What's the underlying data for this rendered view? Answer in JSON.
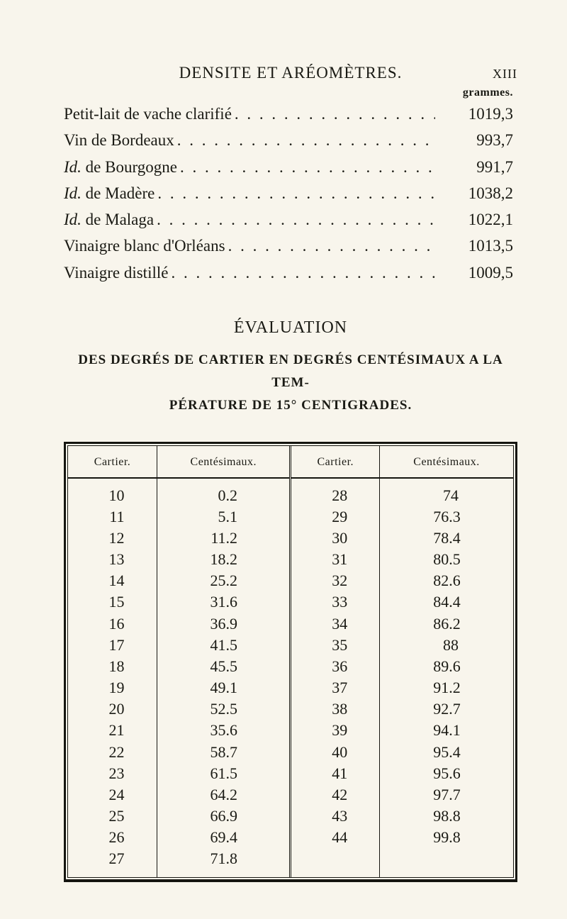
{
  "header": {
    "title": "DENSITE ET ARÉOMÈTRES.",
    "page_marker": "XIII",
    "grammes_label": "grammes."
  },
  "density_list": [
    {
      "label": "Petit-lait de vache clarifié",
      "value": "1019,3"
    },
    {
      "label": "Vin de Bordeaux",
      "value": "993,7"
    },
    {
      "label": "Id. de Bourgogne",
      "id_italic": true,
      "value": "991,7"
    },
    {
      "label": "Id. de Madère",
      "id_italic": true,
      "value": "1038,2"
    },
    {
      "label": "Id. de Malaga",
      "id_italic": true,
      "value": "1022,1"
    },
    {
      "label": "Vinaigre blanc d'Orléans",
      "value": "1013,5"
    },
    {
      "label": "Vinaigre distillé",
      "value": "1009,5"
    }
  ],
  "evaluation": {
    "title": "ÉVALUATION",
    "subtitle_line1": "DES DEGRÉS DE CARTIER EN DEGRÉS CENTÉSIMAUX A LA TEM-",
    "subtitle_line2": "PÉRATURE DE 15° CENTIGRADES."
  },
  "conversion_table": {
    "columns": [
      "Cartier.",
      "Centésimaux.",
      "Cartier.",
      "Centésimaux."
    ],
    "rows": [
      [
        "10",
        "0.2",
        "28",
        "74"
      ],
      [
        "11",
        "5.1",
        "29",
        "76.3"
      ],
      [
        "12",
        "11.2",
        "30",
        "78.4"
      ],
      [
        "13",
        "18.2",
        "31",
        "80.5"
      ],
      [
        "14",
        "25.2",
        "32",
        "82.6"
      ],
      [
        "15",
        "31.6",
        "33",
        "84.4"
      ],
      [
        "16",
        "36.9",
        "34",
        "86.2"
      ],
      [
        "17",
        "41.5",
        "35",
        "88"
      ],
      [
        "18",
        "45.5",
        "36",
        "89.6"
      ],
      [
        "19",
        "49.1",
        "37",
        "91.2"
      ],
      [
        "20",
        "52.5",
        "38",
        "92.7"
      ],
      [
        "21",
        "35.6",
        "39",
        "94.1"
      ],
      [
        "22",
        "58.7",
        "40",
        "95.4"
      ],
      [
        "23",
        "61.5",
        "41",
        "95.6"
      ],
      [
        "24",
        "64.2",
        "42",
        "97.7"
      ],
      [
        "25",
        "66.9",
        "43",
        "98.8"
      ],
      [
        "26",
        "69.4",
        "44",
        "99.8"
      ],
      [
        "27",
        "71.8",
        "",
        ""
      ]
    ]
  },
  "colors": {
    "page_bg": "#f8f5ec",
    "ink": "#1a1a14",
    "rule": "#151510"
  }
}
